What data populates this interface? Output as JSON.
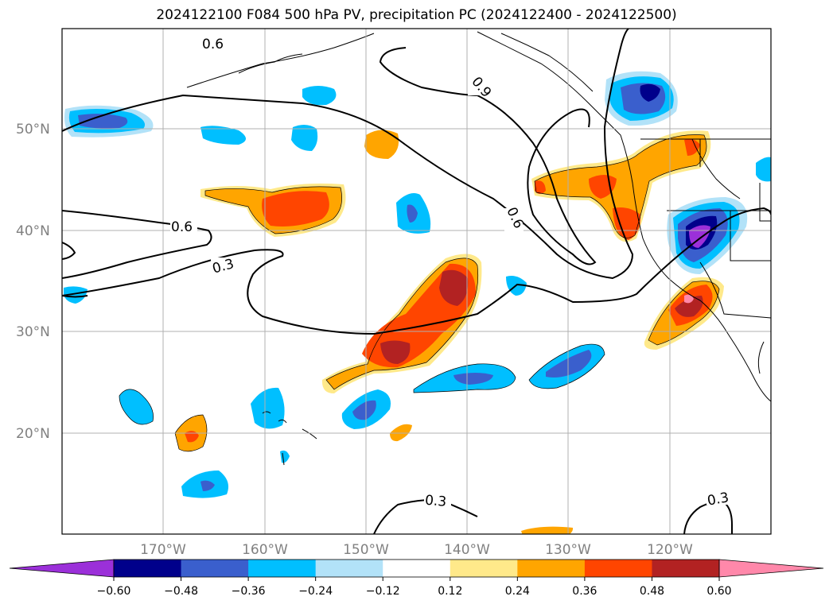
{
  "title": "2024122100 F084 500 hPa PV, precipitation PC (2024122400 - 2024122500)",
  "lat_labels": [
    "50°N",
    "40°N",
    "30°N",
    "20°N"
  ],
  "lon_labels": [
    "170°W",
    "160°W",
    "150°W",
    "140°W",
    "130°W",
    "120°W"
  ],
  "contour_labels": [
    "0.6",
    "0.9",
    "0.6",
    "0.6",
    "0.3",
    "0.3",
    "0.3"
  ],
  "colorbar": {
    "ticks": [
      "−0.60",
      "−0.48",
      "−0.36",
      "−0.24",
      "−0.12",
      "0.12",
      "0.24",
      "0.36",
      "0.48",
      "0.60"
    ],
    "colors": [
      "#9b30d9",
      "#00008b",
      "#3a5fcd",
      "#00bfff",
      "#b2e2f8",
      "#ffffff",
      "#ffe98a",
      "#ffa500",
      "#ff4500",
      "#b22222",
      "#ff88aa"
    ]
  }
}
